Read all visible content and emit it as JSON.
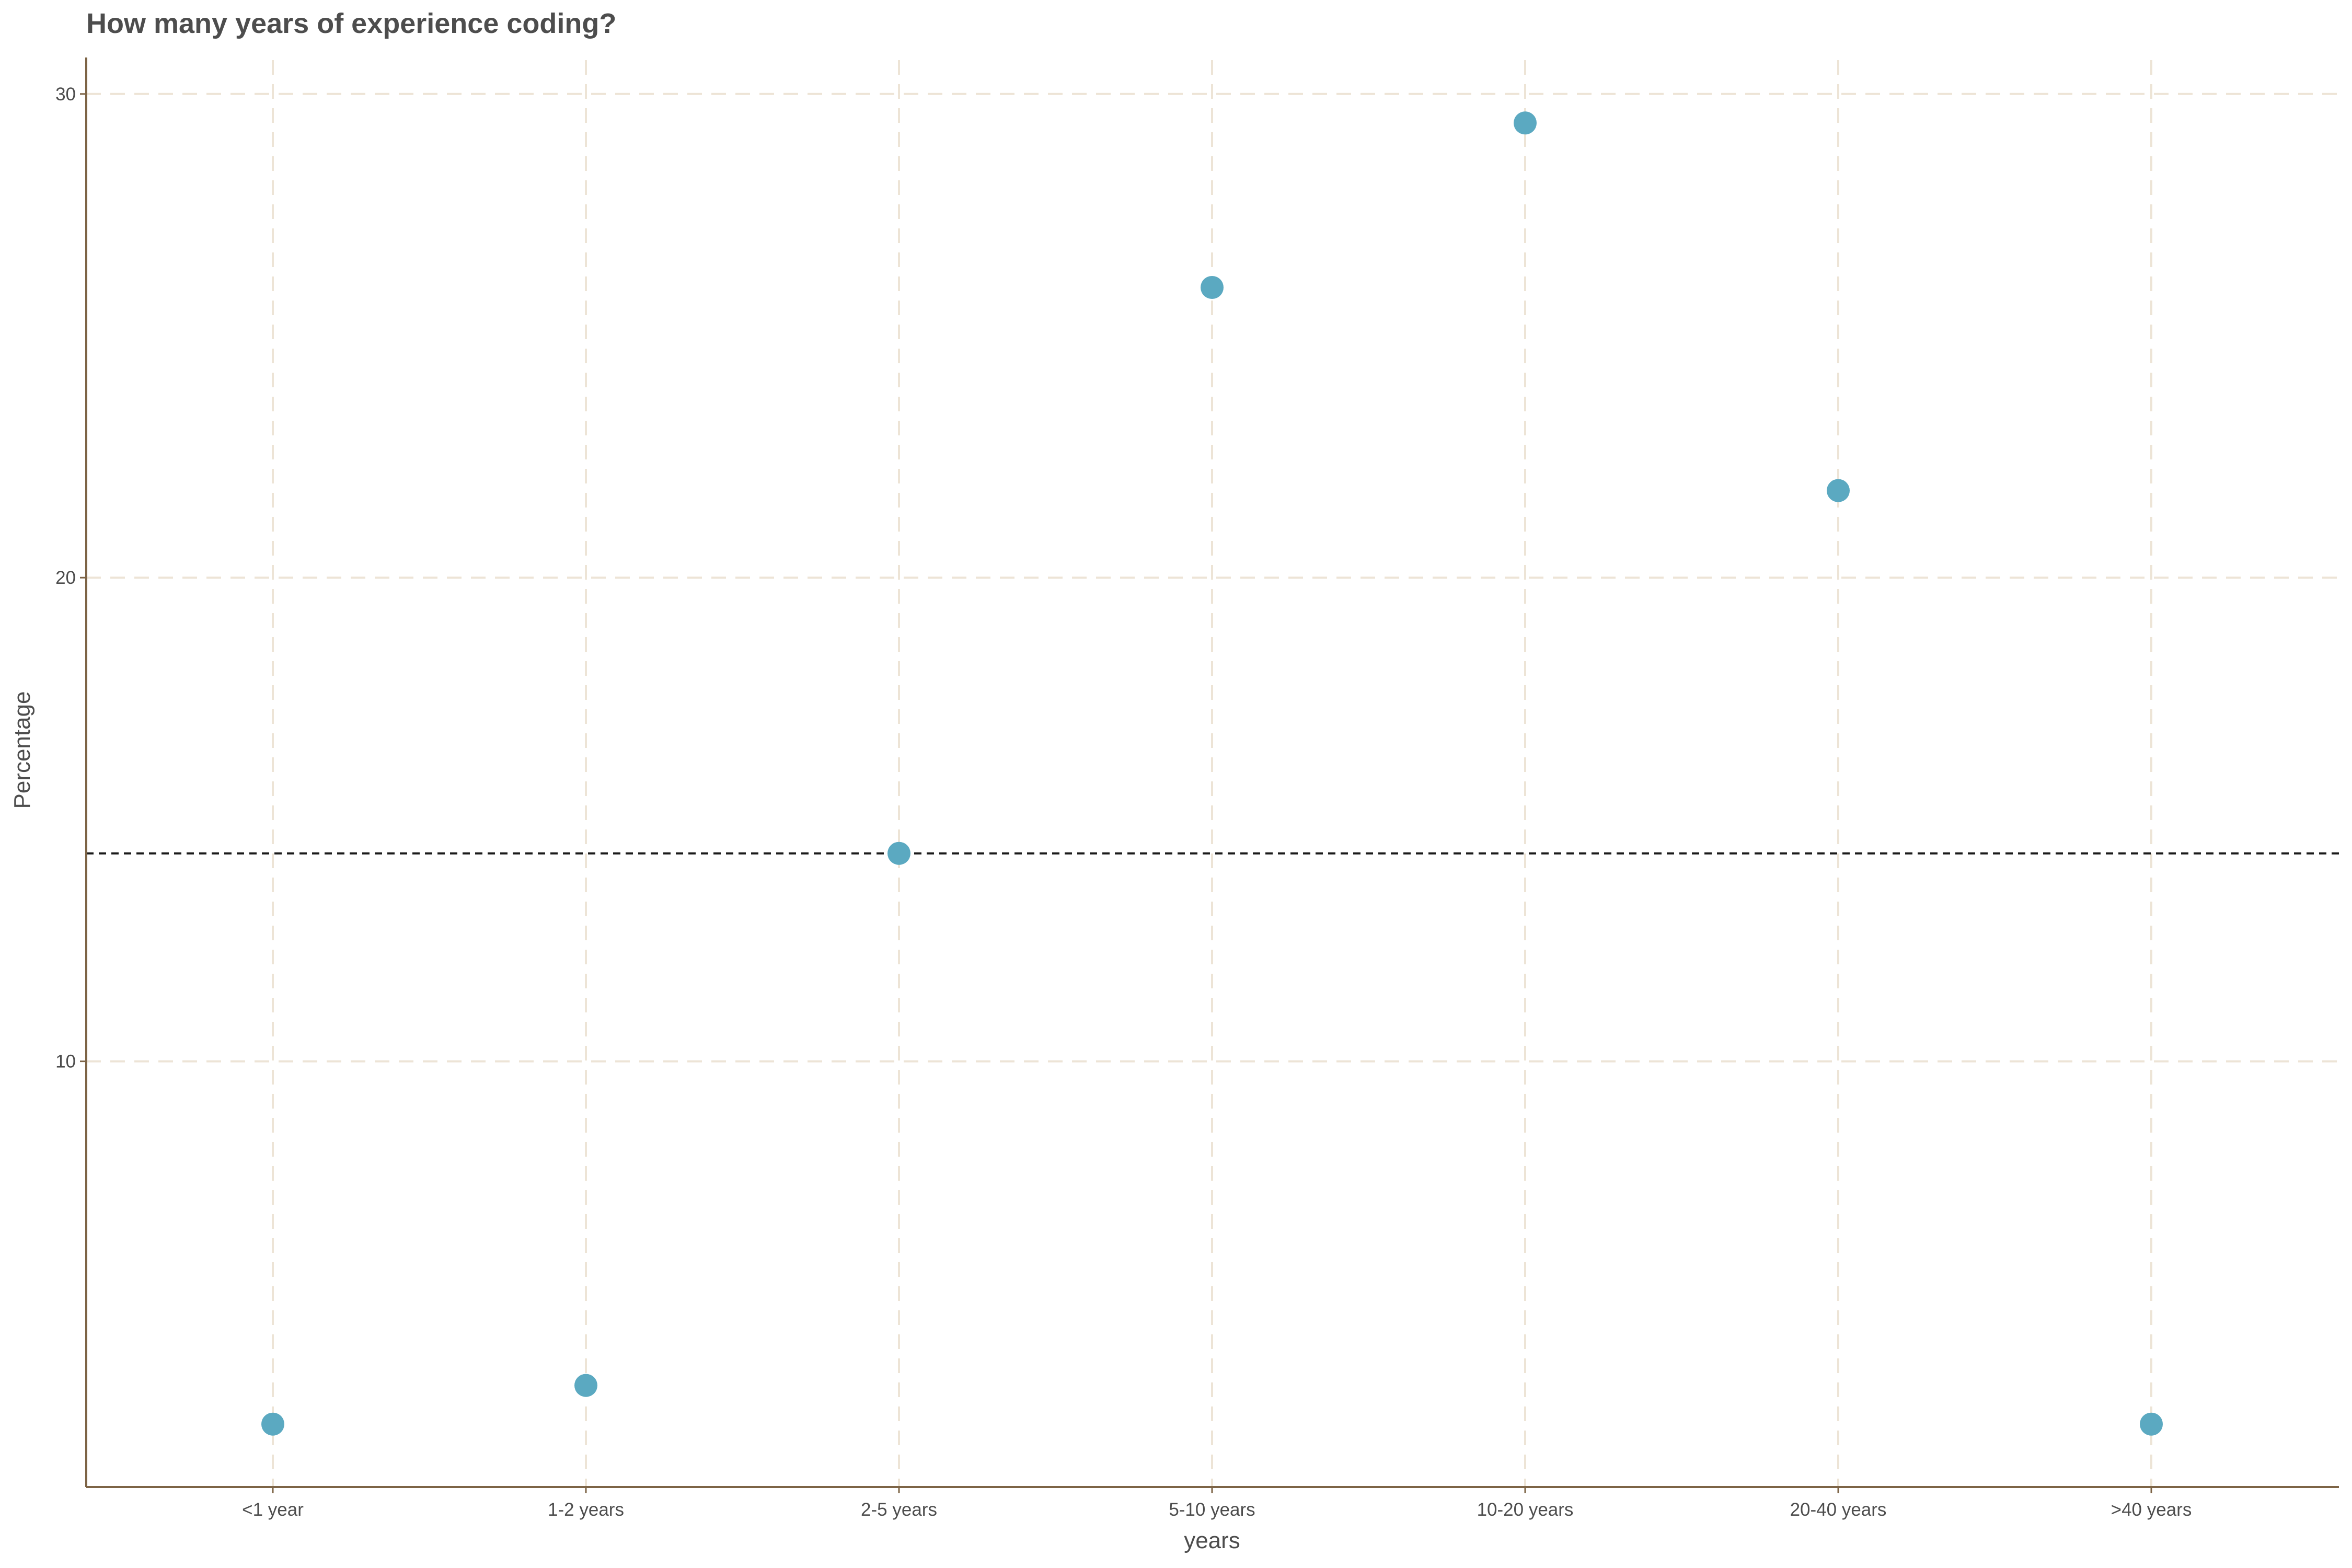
{
  "chart_data": {
    "type": "scatter",
    "title": "How many years of experience coding?",
    "xlabel": "years",
    "ylabel": "Percentage",
    "categories": [
      "<1 year",
      "1-2 years",
      "2-5 years",
      "5-10 years",
      "10-20 years",
      "20-40 years",
      ">40 years"
    ],
    "series": [
      {
        "values": [
          2.5,
          3.3,
          14.3,
          26.0,
          29.4,
          21.8,
          2.5
        ]
      }
    ],
    "reference_line": {
      "y": 14.3,
      "style": "dashed"
    },
    "yticks": [
      10,
      20,
      30
    ],
    "ylim": [
      1.2,
      30.7
    ],
    "grid": true,
    "grid_style": "dashed",
    "legend": "none",
    "colors": {
      "point": "#5ba9c1",
      "grid": "#ede4d6",
      "axis": "#7d6446",
      "reference": "#1a1a1a",
      "text": "#4d4d4d"
    }
  }
}
